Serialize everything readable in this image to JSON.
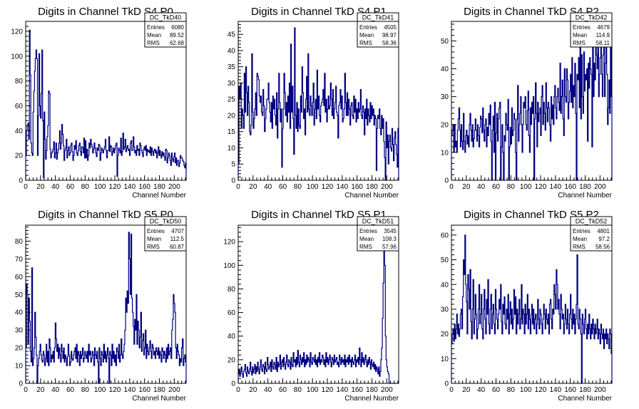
{
  "chart_data": [
    {
      "type": "histogram",
      "title": "Digits in Channel TkD S4 P0",
      "xlabel": "Channel Number",
      "xlim": [
        0,
        216
      ],
      "ylim": [
        0,
        128
      ],
      "xticks": [
        0,
        20,
        40,
        60,
        80,
        100,
        120,
        140,
        160,
        180,
        200
      ],
      "yticks": [
        0,
        20,
        40,
        60,
        80,
        100,
        120
      ],
      "stats": {
        "name": "DC_TkD40",
        "entries": "6080",
        "mean": "89.52",
        "rms": "62.68"
      },
      "values": [
        20,
        40,
        44,
        46,
        33,
        121,
        85,
        30,
        22,
        20,
        55,
        72,
        88,
        98,
        105,
        98,
        20,
        52,
        102,
        60,
        50,
        70,
        105,
        48,
        2,
        55,
        33,
        17,
        24,
        35,
        44,
        72,
        70,
        25,
        18,
        22,
        23,
        25,
        31,
        18,
        22,
        30,
        17,
        22,
        25,
        30,
        40,
        25,
        30,
        45,
        37,
        28,
        16,
        24,
        26,
        33,
        18,
        24,
        27,
        20,
        22,
        28,
        30,
        23,
        16,
        20,
        28,
        25,
        32,
        22,
        20,
        24,
        28,
        30,
        23,
        20,
        27,
        26,
        22,
        34,
        18,
        32,
        18,
        25,
        16,
        20,
        30,
        26,
        33,
        29,
        27,
        22,
        25,
        30,
        26,
        22,
        19,
        26,
        24,
        29,
        28,
        16,
        22,
        26,
        24,
        22,
        25,
        27,
        33,
        24,
        18,
        24,
        24,
        35,
        23,
        28,
        27,
        20,
        23,
        26,
        22,
        25,
        28,
        30,
        3,
        20,
        26,
        24,
        22,
        34,
        20,
        23,
        38,
        25,
        27,
        33,
        23,
        26,
        28,
        24,
        25,
        20,
        30,
        32,
        24,
        24,
        35,
        27,
        22,
        24,
        20,
        28,
        24,
        25,
        20,
        30,
        28,
        24,
        22,
        19,
        25,
        27,
        24,
        28,
        20,
        25,
        23,
        24,
        22,
        27,
        20,
        26,
        23,
        20,
        24,
        25,
        22,
        24,
        18,
        22,
        27,
        20,
        24,
        20,
        18,
        23,
        20,
        22,
        19,
        16,
        25,
        24,
        14,
        18,
        22,
        20,
        16,
        12,
        22,
        17,
        15,
        19,
        22,
        14,
        18,
        12,
        16,
        16,
        11,
        14,
        20,
        18,
        18,
        16,
        15,
        12,
        10,
        14
      ]
    },
    {
      "type": "histogram",
      "title": "Digits in Channel TkD S4 P1",
      "xlabel": "Channel Number",
      "xlim": [
        0,
        216
      ],
      "ylim": [
        0,
        49
      ],
      "xticks": [
        0,
        20,
        40,
        60,
        80,
        100,
        120,
        140,
        160,
        180,
        200
      ],
      "yticks": [
        0,
        5,
        10,
        15,
        20,
        25,
        30,
        35,
        40,
        45
      ],
      "stats": {
        "name": "DC_TkD41",
        "entries": "4505",
        "mean": "98.97",
        "rms": "58.36"
      },
      "values": [
        5,
        29,
        25,
        30,
        16,
        22,
        20,
        16,
        33,
        21,
        35,
        27,
        20,
        29,
        24,
        15,
        14,
        17,
        39,
        21,
        16,
        19,
        22,
        27,
        20,
        33,
        32,
        31,
        26,
        24,
        26,
        21,
        20,
        28,
        23,
        15,
        19,
        22,
        25,
        25,
        30,
        24,
        21,
        18,
        24,
        16,
        26,
        22,
        25,
        20,
        17,
        27,
        13,
        22,
        33,
        24,
        18,
        22,
        4,
        16,
        22,
        33,
        27,
        20,
        24,
        18,
        26,
        21,
        30,
        16,
        42,
        21,
        29,
        19,
        8,
        47,
        20,
        16,
        24,
        15,
        22,
        17,
        16,
        26,
        21,
        35,
        27,
        19,
        22,
        14,
        25,
        32,
        21,
        39,
        22,
        20,
        26,
        23,
        20,
        24,
        30,
        17,
        22,
        25,
        19,
        34,
        22,
        26,
        20,
        18,
        23,
        24,
        25,
        28,
        23,
        33,
        21,
        25,
        18,
        22,
        26,
        22,
        23,
        30,
        25,
        20,
        28,
        19,
        22,
        24,
        29,
        21,
        20,
        13,
        23,
        24,
        28,
        22,
        26,
        18,
        19,
        22,
        33,
        24,
        20,
        27,
        20,
        25,
        22,
        17,
        23,
        24,
        20,
        19,
        26,
        21,
        25,
        18,
        22,
        19,
        24,
        21,
        22,
        28,
        20,
        19,
        23,
        21,
        14,
        22,
        19,
        25,
        17,
        22,
        20,
        18,
        24,
        19,
        23,
        20,
        22,
        17,
        20,
        19,
        3,
        16,
        20,
        19,
        22,
        16,
        14,
        20,
        16,
        19,
        12,
        7,
        0,
        18,
        10,
        14,
        5,
        12,
        14,
        10,
        9,
        16,
        11,
        6,
        13,
        15,
        11,
        8,
        4,
        16
      ]
    },
    {
      "type": "histogram",
      "title": "Digits in Channel TkD S4 P2",
      "xlabel": "Channel Number",
      "xlim": [
        0,
        216
      ],
      "ylim": [
        0,
        57
      ],
      "xticks": [
        0,
        20,
        40,
        60,
        80,
        100,
        120,
        140,
        160,
        180,
        200
      ],
      "yticks": [
        0,
        10,
        20,
        30,
        40,
        50
      ],
      "stats": {
        "name": "DC_TkD42",
        "entries": "4679",
        "mean": "114.9",
        "rms": "58.11"
      },
      "values": [
        16,
        18,
        20,
        10,
        20,
        12,
        14,
        10,
        18,
        22,
        26,
        18,
        12,
        20,
        14,
        11,
        24,
        14,
        10,
        16,
        18,
        13,
        16,
        12,
        20,
        24,
        18,
        14,
        20,
        12,
        15,
        18,
        22,
        18,
        14,
        20,
        16,
        12,
        19,
        23,
        22,
        17,
        26,
        18,
        14,
        20,
        22,
        12,
        19,
        16,
        24,
        20,
        27,
        14,
        0,
        18,
        23,
        10,
        28,
        0,
        17,
        24,
        14,
        22,
        26,
        28,
        0,
        12,
        20,
        10,
        0,
        16,
        14,
        24,
        20,
        18,
        29,
        0,
        12,
        19,
        13,
        26,
        16,
        18,
        24,
        22,
        10,
        0,
        22,
        34,
        14,
        20,
        24,
        30,
        20,
        10,
        20,
        28,
        26,
        30,
        20,
        18,
        25,
        32,
        16,
        10,
        26,
        20,
        28,
        24,
        30,
        0,
        22,
        35,
        24,
        12,
        28,
        21,
        24,
        26,
        16,
        30,
        34,
        20,
        28,
        24,
        18,
        35,
        26,
        21,
        28,
        26,
        20,
        14,
        30,
        22,
        27,
        20,
        30,
        34,
        26,
        22,
        30,
        33,
        28,
        25,
        42,
        24,
        30,
        36,
        22,
        16,
        40,
        30,
        28,
        40,
        36,
        22,
        28,
        32,
        38,
        28,
        44,
        26,
        34,
        30,
        42,
        24,
        0,
        38,
        36,
        44,
        26,
        48,
        22,
        45,
        30,
        24,
        46,
        32,
        38,
        36,
        40,
        14,
        42,
        33,
        44,
        40,
        38,
        12,
        50,
        30,
        42,
        36,
        48,
        45,
        40,
        52,
        30,
        38,
        44,
        52,
        38,
        30,
        45,
        48,
        30,
        42,
        50,
        38,
        20,
        26,
        36,
        24,
        48,
        30
      ]
    },
    {
      "type": "histogram",
      "title": "Digits in Channel TkD S5 P0",
      "xlabel": "Channel Number",
      "xlim": [
        0,
        216
      ],
      "ylim": [
        0,
        89
      ],
      "xticks": [
        0,
        20,
        40,
        60,
        80,
        100,
        120,
        140,
        160,
        180,
        200
      ],
      "yticks": [
        0,
        10,
        20,
        30,
        40,
        50,
        60,
        70,
        80
      ],
      "stats": {
        "name": "DC_TkD50",
        "entries": "4707",
        "mean": "112.5",
        "rms": "60.87"
      },
      "values": [
        20,
        56,
        50,
        22,
        48,
        35,
        18,
        12,
        65,
        10,
        14,
        20,
        40,
        26,
        16,
        0,
        10,
        14,
        18,
        22,
        16,
        13,
        12,
        18,
        16,
        10,
        14,
        22,
        12,
        18,
        10,
        25,
        20,
        12,
        16,
        14,
        18,
        12,
        20,
        34,
        25,
        18,
        22,
        14,
        20,
        16,
        12,
        22,
        18,
        14,
        20,
        12,
        16,
        14,
        10,
        15,
        22,
        16,
        10,
        12,
        18,
        14,
        13,
        16,
        18,
        20,
        14,
        22,
        12,
        18,
        16,
        10,
        18,
        14,
        16,
        20,
        12,
        14,
        18,
        16,
        14,
        18,
        12,
        22,
        16,
        18,
        12,
        14,
        18,
        16,
        10,
        20,
        16,
        14,
        18,
        12,
        0,
        20,
        14,
        10,
        18,
        16,
        12,
        22,
        14,
        18,
        12,
        16,
        20,
        14,
        0,
        18,
        16,
        10,
        22,
        14,
        18,
        12,
        16,
        10,
        20,
        18,
        14,
        22,
        12,
        16,
        25,
        16,
        14,
        18,
        22,
        30,
        48,
        40,
        52,
        45,
        85,
        70,
        50,
        84,
        48,
        40,
        32,
        22,
        36,
        30,
        50,
        22,
        35,
        30,
        20,
        26,
        40,
        18,
        24,
        28,
        16,
        20,
        30,
        14,
        22,
        18,
        16,
        20,
        24,
        18,
        14,
        22,
        20,
        16,
        18,
        14,
        20,
        18,
        16,
        20,
        14,
        18,
        16,
        12,
        20,
        18,
        14,
        18,
        16,
        12,
        20,
        14,
        22,
        16,
        18,
        20,
        14,
        30,
        36,
        50,
        45,
        40,
        20,
        14,
        22,
        18,
        16,
        10,
        14,
        12,
        20,
        25,
        10,
        14,
        16,
        12
      ]
    },
    {
      "type": "histogram",
      "title": "Digits in Channel TkD S5 P1",
      "xlabel": "Channel Number",
      "xlim": [
        0,
        216
      ],
      "ylim": [
        0,
        134
      ],
      "xticks": [
        0,
        20,
        40,
        60,
        80,
        100,
        120,
        140,
        160,
        180,
        200
      ],
      "yticks": [
        0,
        20,
        40,
        60,
        80,
        100,
        120
      ],
      "stats": {
        "name": "DC_TkD51",
        "entries": "3545",
        "mean": "108.3",
        "rms": "57.96"
      },
      "values": [
        8,
        12,
        6,
        10,
        14,
        8,
        5,
        10,
        12,
        16,
        9,
        6,
        14,
        10,
        8,
        12,
        18,
        10,
        7,
        14,
        9,
        12,
        16,
        8,
        14,
        10,
        18,
        12,
        8,
        14,
        20,
        12,
        10,
        16,
        14,
        8,
        18,
        12,
        10,
        22,
        16,
        12,
        14,
        18,
        10,
        20,
        14,
        12,
        18,
        16,
        12,
        22,
        10,
        18,
        14,
        16,
        24,
        12,
        18,
        20,
        14,
        22,
        16,
        12,
        18,
        24,
        16,
        14,
        20,
        18,
        12,
        22,
        16,
        14,
        26,
        18,
        20,
        14,
        22,
        16,
        28,
        18,
        14,
        24,
        20,
        16,
        22,
        18,
        26,
        14,
        20,
        16,
        24,
        18,
        22,
        20,
        14,
        26,
        18,
        16,
        22,
        20,
        18,
        24,
        16,
        20,
        14,
        22,
        18,
        26,
        16,
        20,
        18,
        24,
        22,
        16,
        20,
        14,
        26,
        18,
        22,
        16,
        20,
        24,
        18,
        14,
        22,
        20,
        16,
        24,
        18,
        20,
        22,
        16,
        18,
        14,
        24,
        20,
        16,
        22,
        18,
        20,
        16,
        24,
        14,
        20,
        18,
        22,
        16,
        24,
        18,
        20,
        14,
        22,
        18,
        16,
        20,
        24,
        14,
        20,
        18,
        22,
        16,
        30,
        20,
        14,
        26,
        18,
        22,
        16,
        20,
        24,
        18,
        14,
        20,
        16,
        22,
        18,
        12,
        20,
        16,
        14,
        18,
        12,
        16,
        10,
        14,
        12,
        8,
        14,
        6,
        10,
        20,
        30,
        55,
        85,
        118,
        100,
        40,
        20,
        14,
        10,
        8,
        0,
        0,
        0,
        0,
        0,
        0,
        0,
        0,
        0,
        0,
        0,
        0,
        0
      ]
    },
    {
      "type": "histogram",
      "title": "Digits in Channel TkD S5 P2",
      "xlabel": "Channel Number",
      "xlim": [
        0,
        216
      ],
      "ylim": [
        0,
        64
      ],
      "xticks": [
        0,
        20,
        40,
        60,
        80,
        100,
        120,
        140,
        160,
        180,
        200
      ],
      "yticks": [
        0,
        10,
        20,
        30,
        40,
        50,
        60
      ],
      "stats": {
        "name": "DC_TkD52",
        "entries": "4801",
        "mean": "97.2",
        "rms": "58.56"
      },
      "values": [
        16,
        20,
        22,
        17,
        24,
        18,
        22,
        28,
        20,
        24,
        19,
        22,
        28,
        30,
        22,
        35,
        50,
        44,
        60,
        40,
        33,
        20,
        44,
        38,
        30,
        46,
        25,
        18,
        30,
        42,
        20,
        26,
        36,
        28,
        18,
        22,
        30,
        40,
        24,
        28,
        36,
        22,
        18,
        30,
        38,
        26,
        20,
        34,
        28,
        42,
        24,
        20,
        30,
        36,
        22,
        28,
        32,
        24,
        20,
        38,
        30,
        26,
        22,
        28,
        34,
        30,
        40,
        25,
        20,
        32,
        28,
        35,
        24,
        22,
        30,
        26,
        36,
        20,
        28,
        33,
        24,
        30,
        22,
        26,
        38,
        28,
        35,
        20,
        30,
        24,
        28,
        34,
        22,
        26,
        40,
        24,
        30,
        28,
        20,
        32,
        24,
        28,
        36,
        22,
        30,
        26,
        20,
        28,
        32,
        24,
        30,
        22,
        26,
        28,
        20,
        24,
        34,
        26,
        22,
        30,
        28,
        24,
        20,
        26,
        32,
        28,
        22,
        30,
        26,
        24,
        28,
        20,
        32,
        34,
        26,
        22,
        30,
        28,
        40,
        36,
        30,
        46,
        40,
        30,
        34,
        28,
        22,
        36,
        30,
        26,
        28,
        20,
        24,
        32,
        26,
        22,
        30,
        24,
        20,
        28,
        36,
        26,
        22,
        30,
        24,
        28,
        20,
        26,
        32,
        52,
        24,
        22,
        30,
        26,
        20,
        0,
        28,
        24,
        20,
        26,
        30,
        22,
        18,
        24,
        20,
        28,
        22,
        18,
        24,
        20,
        26,
        22,
        18,
        24,
        20,
        22,
        26,
        18,
        22,
        20,
        16,
        24,
        20,
        18,
        22,
        14,
        20,
        18,
        22,
        16,
        20,
        18,
        14,
        22,
        20,
        12
      ]
    }
  ]
}
